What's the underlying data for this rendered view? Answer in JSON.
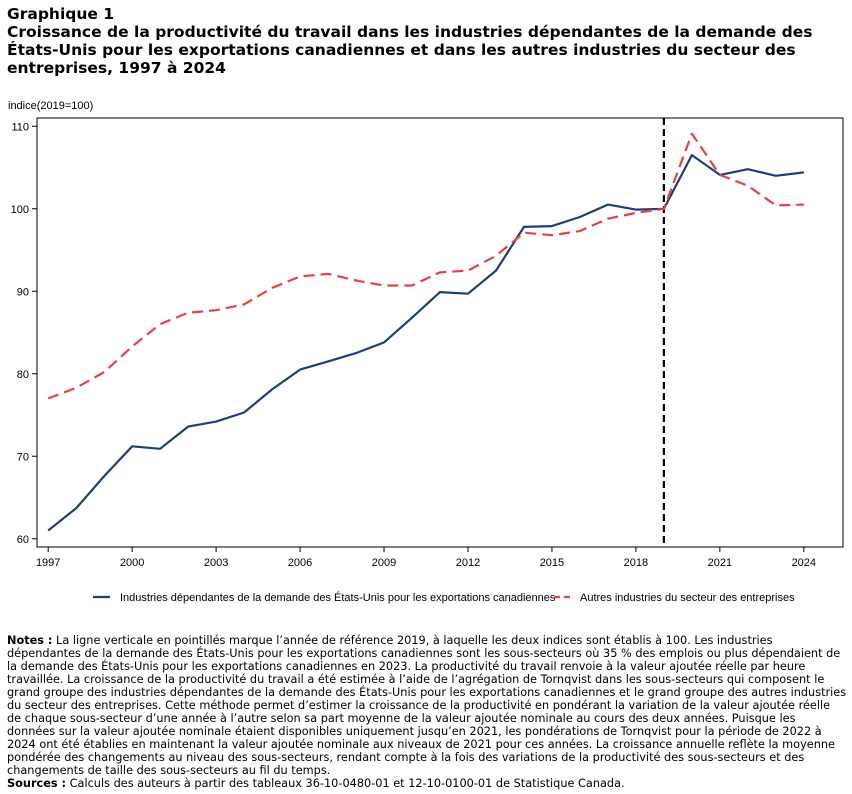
{
  "figure": {
    "label": "Graphique 1",
    "title": "Croissance de la productivité du travail dans les industries dépendantes de la demande des États-Unis pour les exportations canadiennes et dans les autres industries du secteur des entreprises, 1997 à 2024"
  },
  "chart_data": {
    "type": "line",
    "ylabel": "indice(2019=100)",
    "xlim": [
      1996.6,
      2025.4
    ],
    "ylim": [
      59,
      111
    ],
    "x_ticks": [
      1997,
      2000,
      2003,
      2006,
      2009,
      2012,
      2015,
      2018,
      2021,
      2024
    ],
    "y_ticks": [
      60,
      70,
      80,
      90,
      100,
      110
    ],
    "reference_line": {
      "x": 2019,
      "style": "dashed",
      "color": "#000000"
    },
    "x": [
      1997,
      1998,
      1999,
      2000,
      2001,
      2002,
      2003,
      2004,
      2005,
      2006,
      2007,
      2008,
      2009,
      2010,
      2011,
      2012,
      2013,
      2014,
      2015,
      2016,
      2017,
      2018,
      2019,
      2020,
      2021,
      2022,
      2023,
      2024
    ],
    "series": [
      {
        "name": "Industries dépendantes de la demande des États-Unis pour les exportations canadiennes",
        "color": "#1f3d7a",
        "style": "solid",
        "values": [
          61.0,
          63.7,
          67.6,
          71.2,
          70.9,
          73.6,
          74.2,
          75.3,
          78.1,
          80.5,
          81.5,
          82.5,
          83.8,
          86.8,
          89.9,
          89.7,
          92.5,
          97.8,
          97.9,
          99.0,
          100.5,
          99.9,
          100.0,
          106.5,
          104.1,
          104.8,
          104.0,
          104.4
        ]
      },
      {
        "name": "Autres industries du secteur des entreprises",
        "color": "#e8413f",
        "style": "dashed",
        "values": [
          77.0,
          78.3,
          80.2,
          83.3,
          86.0,
          87.4,
          87.7,
          88.4,
          90.4,
          91.8,
          92.1,
          91.3,
          90.7,
          90.7,
          92.3,
          92.5,
          94.3,
          97.1,
          96.8,
          97.3,
          98.8,
          99.5,
          100.0,
          109.1,
          104.1,
          102.8,
          100.4,
          100.5
        ]
      }
    ],
    "legend": {
      "placement": "bottom"
    }
  },
  "notes": {
    "notes_label": "Notes :",
    "notes_text": "La ligne verticale en pointillés marque l’année de référence 2019, à laquelle les deux indices sont établis à 100. Les industries dépendantes de la demande des États-Unis pour les exportations canadiennes sont les sous-secteurs où 35 % des emplois ou plus dépendaient de la demande des États-Unis pour les exportations canadiennes en 2023. La productivité du travail renvoie à la valeur ajoutée réelle par heure travaillée. La croissance de la productivité du travail a été estimée à l’aide de l’agrégation de Tornqvist dans les sous-secteurs qui composent le grand groupe des industries dépendantes de la demande des États-Unis pour les exportations canadiennes et le grand groupe des autres industries du secteur des entreprises. Cette méthode permet d’estimer la croissance de la productivité en pondérant la variation de la valeur ajoutée réelle de chaque sous-secteur d’une année à l’autre selon sa part moyenne de la valeur ajoutée nominale au cours des deux années. Puisque les données sur la valeur ajoutée nominale étaient disponibles uniquement jusqu’en 2021, les pondérations de Tornqvist pour la période de 2022 à 2024 ont été établies en maintenant la valeur ajoutée nominale aux niveaux de 2021 pour ces années. La croissance annuelle reflète la moyenne pondérée des changements au niveau des sous-secteurs, rendant compte à la fois des variations de la productivité des sous-secteurs et des changements de taille des sous-secteurs au fil du temps.",
    "sources_label": "Sources :",
    "sources_text": "Calculs des auteurs à partir des tableaux 36-10-0480-01 et 12-10-0100-01 de Statistique Canada."
  }
}
